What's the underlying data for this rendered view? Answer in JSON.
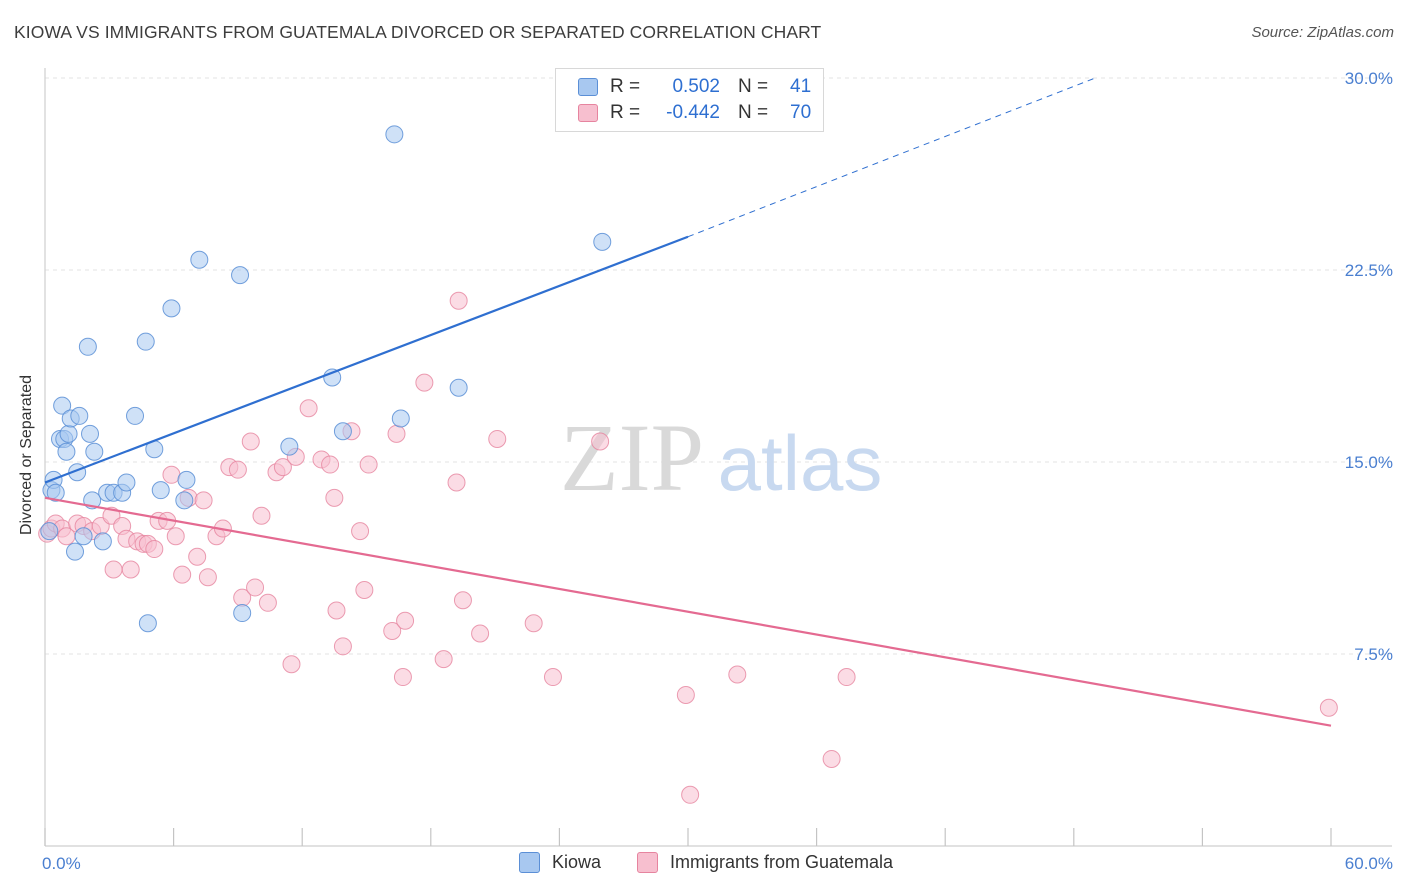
{
  "title": "KIOWA VS IMMIGRANTS FROM GUATEMALA DIVORCED OR SEPARATED CORRELATION CHART",
  "source": "Source: ZipAtlas.com",
  "watermark": {
    "zip": "ZIP",
    "atlas": "atlas"
  },
  "legend": {
    "rows": [
      {
        "r_label": "R =",
        "r_value": "0.502",
        "n_label": "N =",
        "n_value": "41"
      },
      {
        "r_label": "R =",
        "r_value": "-0.442",
        "n_label": "N =",
        "n_value": "70"
      }
    ]
  },
  "bottom_legend": {
    "kiowa": "Kiowa",
    "guatemala": "Immigrants from Guatemala"
  },
  "colors": {
    "kiowa_fill": "#a8c8f0",
    "kiowa_stroke": "#5b8fd6",
    "kiowa_line": "#2f6fd0",
    "guat_fill": "#f7bfcf",
    "guat_stroke": "#e6849f",
    "guat_line": "#e46a91",
    "tick_text": "#4a7fd0",
    "grid": "#e3e3e3"
  },
  "chart_data": {
    "type": "scatter",
    "title": "KIOWA VS IMMIGRANTS FROM GUATEMALA DIVORCED OR SEPARATED CORRELATION CHART",
    "xlabel": "",
    "ylabel": "Divorced or Separated",
    "xlim": [
      0,
      60
    ],
    "ylim": [
      0,
      30
    ],
    "x_tick_labels": [
      "0.0%",
      "60.0%"
    ],
    "y_ticks": [
      7.5,
      15.0,
      22.5,
      30.0
    ],
    "y_tick_labels": [
      "7.5%",
      "15.0%",
      "22.5%",
      "30.0%"
    ],
    "grid": true,
    "legend_placement": "top-center",
    "series": [
      {
        "name": "Kiowa",
        "r": 0.502,
        "n": 41,
        "points": [
          [
            0.2,
            12.3
          ],
          [
            0.3,
            13.9
          ],
          [
            0.4,
            14.3
          ],
          [
            0.5,
            13.8
          ],
          [
            0.7,
            15.9
          ],
          [
            0.8,
            17.2
          ],
          [
            0.9,
            15.9
          ],
          [
            1.0,
            15.4
          ],
          [
            1.1,
            16.1
          ],
          [
            1.2,
            16.7
          ],
          [
            1.4,
            11.5
          ],
          [
            1.5,
            14.6
          ],
          [
            1.6,
            16.8
          ],
          [
            1.8,
            12.1
          ],
          [
            2.0,
            19.5
          ],
          [
            2.1,
            16.1
          ],
          [
            2.2,
            13.5
          ],
          [
            2.3,
            15.4
          ],
          [
            2.7,
            11.9
          ],
          [
            2.9,
            13.8
          ],
          [
            3.2,
            13.8
          ],
          [
            3.6,
            13.8
          ],
          [
            3.8,
            14.2
          ],
          [
            4.2,
            16.8
          ],
          [
            4.7,
            19.7
          ],
          [
            4.8,
            8.7
          ],
          [
            5.1,
            15.5
          ],
          [
            5.4,
            13.9
          ],
          [
            5.9,
            21.0
          ],
          [
            6.5,
            13.5
          ],
          [
            6.6,
            14.3
          ],
          [
            7.2,
            22.9
          ],
          [
            9.1,
            22.3
          ],
          [
            9.2,
            9.1
          ],
          [
            11.4,
            15.6
          ],
          [
            13.4,
            18.3
          ],
          [
            13.9,
            16.2
          ],
          [
            16.3,
            27.8
          ],
          [
            16.6,
            16.7
          ],
          [
            19.3,
            17.9
          ],
          [
            26.0,
            23.6
          ]
        ],
        "trend": {
          "x": [
            0,
            30
          ],
          "y": [
            14.2,
            23.8
          ],
          "dashed_to": [
            49,
            30.0
          ]
        }
      },
      {
        "name": "Immigrants from Guatemala",
        "r": -0.442,
        "n": 70,
        "points": [
          [
            0.1,
            12.2
          ],
          [
            0.3,
            12.4
          ],
          [
            0.5,
            12.6
          ],
          [
            0.8,
            12.4
          ],
          [
            1.0,
            12.1
          ],
          [
            1.5,
            12.6
          ],
          [
            1.8,
            12.5
          ],
          [
            2.2,
            12.3
          ],
          [
            2.6,
            12.5
          ],
          [
            3.1,
            12.9
          ],
          [
            3.2,
            10.8
          ],
          [
            3.6,
            12.5
          ],
          [
            3.8,
            12.0
          ],
          [
            4.0,
            10.8
          ],
          [
            4.3,
            11.9
          ],
          [
            4.6,
            11.8
          ],
          [
            4.8,
            11.8
          ],
          [
            5.1,
            11.6
          ],
          [
            5.3,
            12.7
          ],
          [
            5.7,
            12.7
          ],
          [
            5.9,
            14.5
          ],
          [
            6.1,
            12.1
          ],
          [
            6.4,
            10.6
          ],
          [
            6.7,
            13.6
          ],
          [
            7.1,
            11.3
          ],
          [
            7.4,
            13.5
          ],
          [
            7.6,
            10.5
          ],
          [
            8.0,
            12.1
          ],
          [
            8.3,
            12.4
          ],
          [
            8.6,
            14.8
          ],
          [
            9.0,
            14.7
          ],
          [
            9.2,
            9.7
          ],
          [
            9.6,
            15.8
          ],
          [
            9.8,
            10.1
          ],
          [
            10.1,
            12.9
          ],
          [
            10.4,
            9.5
          ],
          [
            10.8,
            14.6
          ],
          [
            11.1,
            14.8
          ],
          [
            11.5,
            7.1
          ],
          [
            11.7,
            15.2
          ],
          [
            12.3,
            17.1
          ],
          [
            12.9,
            15.1
          ],
          [
            13.3,
            14.9
          ],
          [
            13.5,
            13.6
          ],
          [
            13.6,
            9.2
          ],
          [
            13.9,
            7.8
          ],
          [
            14.3,
            16.2
          ],
          [
            14.7,
            12.3
          ],
          [
            14.9,
            10.0
          ],
          [
            15.1,
            14.9
          ],
          [
            16.2,
            8.4
          ],
          [
            16.4,
            16.1
          ],
          [
            16.7,
            6.6
          ],
          [
            16.8,
            8.8
          ],
          [
            17.7,
            18.1
          ],
          [
            18.6,
            7.3
          ],
          [
            19.2,
            14.2
          ],
          [
            19.3,
            21.3
          ],
          [
            19.5,
            9.6
          ],
          [
            20.3,
            8.3
          ],
          [
            21.1,
            15.9
          ],
          [
            22.8,
            8.7
          ],
          [
            23.7,
            6.6
          ],
          [
            25.9,
            15.8
          ],
          [
            29.9,
            5.9
          ],
          [
            32.3,
            6.7
          ],
          [
            36.7,
            3.4
          ],
          [
            37.4,
            6.6
          ],
          [
            30.1,
            2.0
          ],
          [
            59.9,
            5.4
          ]
        ],
        "trend": {
          "x": [
            0,
            60
          ],
          "y": [
            13.6,
            4.7
          ]
        }
      }
    ]
  }
}
